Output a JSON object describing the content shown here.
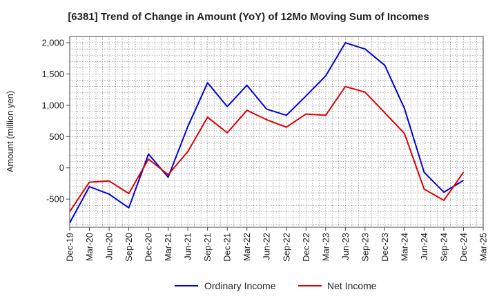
{
  "chart_data": {
    "type": "line",
    "title": "[6381]  Trend of Change in Amount (YoY) of 12Mo Moving Sum of Incomes",
    "xlabel": "",
    "ylabel": "Amount (million yen)",
    "ylim": [
      -950,
      2100
    ],
    "y_ticks": [
      -500,
      0,
      500,
      1000,
      1500,
      2000
    ],
    "y_tick_labels": [
      "-500",
      "0",
      "500",
      "1,000",
      "1,500",
      "2,000"
    ],
    "x": [
      "Dec-19",
      "Mar-20",
      "Jun-20",
      "Sep-20",
      "Dec-20",
      "Mar-21",
      "Jun-21",
      "Sep-21",
      "Dec-21",
      "Mar-22",
      "Jun-22",
      "Sep-22",
      "Dec-22",
      "Mar-23",
      "Jun-23",
      "Sep-23",
      "Dec-23",
      "Mar-24",
      "Jun-24",
      "Sep-24",
      "Dec-24",
      "Mar-25"
    ],
    "grid": true,
    "legend_position": "bottom",
    "series": [
      {
        "name": "Ordinary Income",
        "color": "#0000dd",
        "values": [
          -880,
          -300,
          -420,
          -640,
          220,
          -150,
          660,
          1360,
          980,
          1320,
          940,
          840,
          1150,
          1470,
          2000,
          1900,
          1640,
          950,
          -70,
          -390,
          -200,
          null
        ]
      },
      {
        "name": "Net Income",
        "color": "#dd0000",
        "values": [
          -700,
          -230,
          -210,
          -410,
          140,
          -110,
          260,
          810,
          560,
          920,
          770,
          650,
          860,
          840,
          1300,
          1210,
          880,
          550,
          -340,
          -520,
          -70,
          null
        ]
      }
    ]
  }
}
